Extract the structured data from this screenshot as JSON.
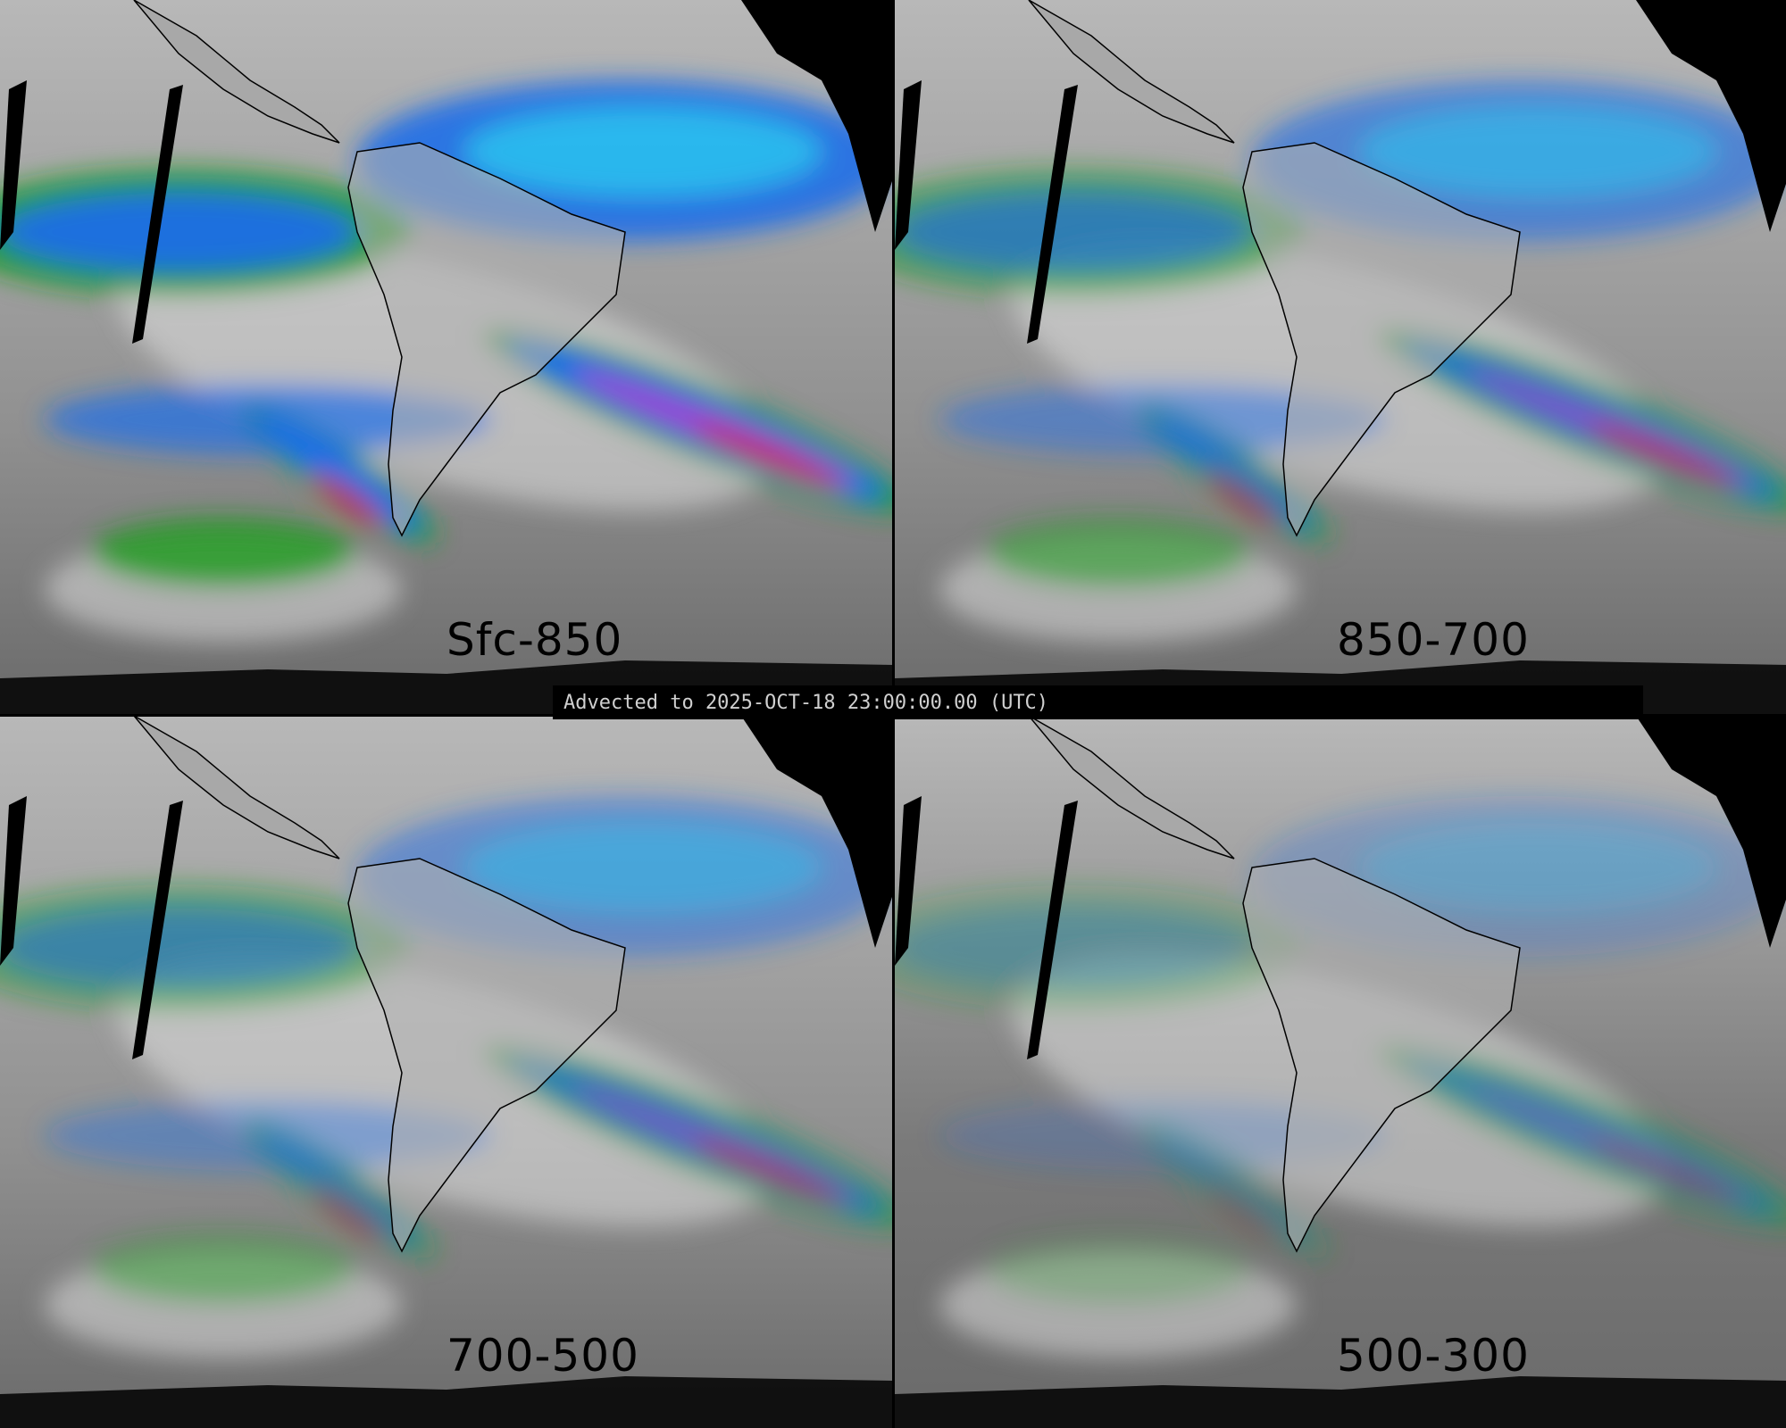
{
  "banner": {
    "text": "Advected to 2025-OCT-18 23:00:00.00 (UTC)"
  },
  "panels": [
    {
      "label": "Sfc-850",
      "intensity": 1.0
    },
    {
      "label": "850-700",
      "intensity": 0.7
    },
    {
      "label": "700-500",
      "intensity": 0.55
    },
    {
      "label": "500-300",
      "intensity": 0.3
    }
  ],
  "colors": {
    "background_gray": "#9a9a9a",
    "light": "#e8e8e8",
    "green": "#1a9a1a",
    "blue": "#1e6ee8",
    "cyan": "#28c8f0",
    "magenta": "#a040d0",
    "red": "#d01010",
    "orange": "#f08010",
    "coast": "#000000"
  }
}
